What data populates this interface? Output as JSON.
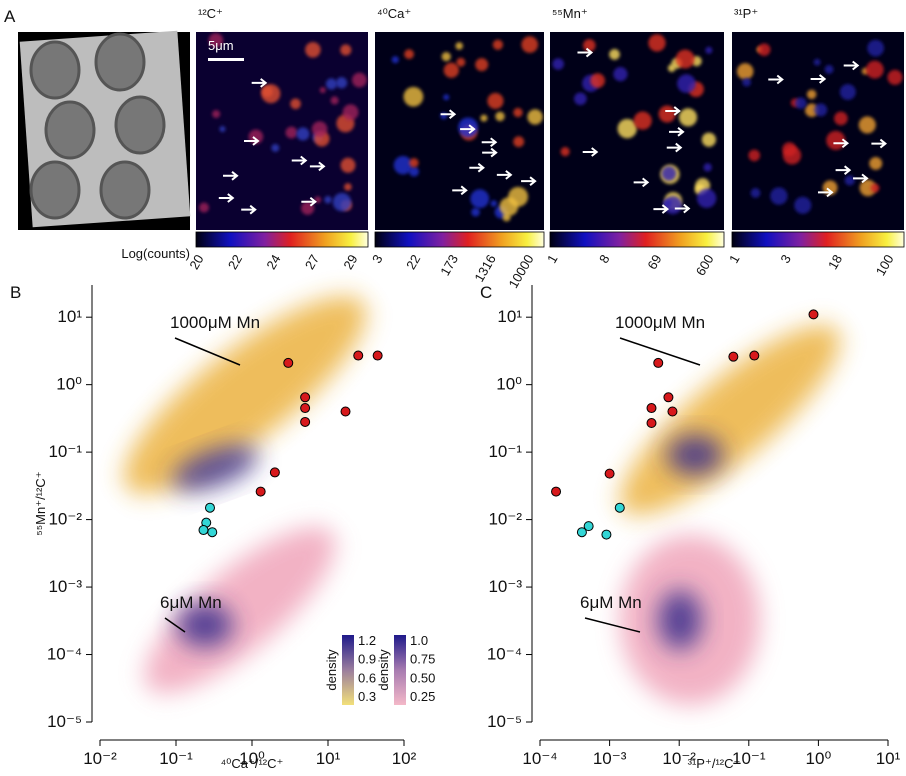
{
  "panel_a": {
    "label": "A",
    "scale_bar": "5μm",
    "colorbar_title": "Log(counts)",
    "channels": [
      {
        "title": "¹²C⁺",
        "ticks": [
          20,
          22,
          24,
          27,
          29
        ]
      },
      {
        "title": "⁴⁰Ca⁺",
        "ticks": [
          3,
          22,
          173,
          1316,
          10000
        ]
      },
      {
        "title": "⁵⁵Mn⁺",
        "ticks": [
          1,
          8,
          69,
          600
        ]
      },
      {
        "title": "³¹P⁺",
        "ticks": [
          1,
          3,
          18,
          100
        ]
      }
    ]
  },
  "chart_data": [
    {
      "type": "scatter",
      "label": "B",
      "xlabel": "⁴⁰Ca⁺/¹²C⁺",
      "ylabel": "⁵⁵Mn⁺/¹²C⁺",
      "log_x": true,
      "log_y": true,
      "xlim": [
        0.01,
        100
      ],
      "ylim": [
        1e-05,
        30
      ],
      "xticks": [
        {
          "value": 0.01,
          "label": "10⁻²"
        },
        {
          "value": 0.1,
          "label": "10⁻¹"
        },
        {
          "value": 1,
          "label": "10⁰"
        },
        {
          "value": 10,
          "label": "10¹"
        },
        {
          "value": 100,
          "label": "10²"
        }
      ],
      "yticks": [
        {
          "value": 1e-05,
          "label": "10⁻⁵"
        },
        {
          "value": 0.0001,
          "label": "10⁻⁴"
        },
        {
          "value": 0.001,
          "label": "10⁻³"
        },
        {
          "value": 0.01,
          "label": "10⁻²"
        },
        {
          "value": 0.1,
          "label": "10⁻¹"
        },
        {
          "value": 1,
          "label": "10⁰"
        },
        {
          "value": 10,
          "label": "10¹"
        }
      ],
      "annotations": [
        "1000μM Mn",
        "6μM Mn"
      ],
      "density_colorbars": [
        {
          "title": "density",
          "ticks": [
            0.3,
            0.6,
            0.9,
            1.2
          ]
        },
        {
          "title": "density",
          "ticks": [
            0.25,
            {
              "value": 0.5,
              "label": "0.50"
            },
            0.75,
            {
              "value": 1,
              "label": "1.0"
            }
          ]
        }
      ],
      "series": [
        {
          "color": "#d7191c",
          "x": [
            3,
            25,
            45,
            5,
            5,
            5,
            17,
            2,
            1.3
          ],
          "values": [
            2.1,
            2.7,
            2.7,
            0.65,
            0.45,
            0.28,
            0.4,
            0.05,
            0.026
          ]
        },
        {
          "color": "#33d6d6",
          "x": [
            0.28,
            0.25,
            0.23,
            0.3
          ],
          "values": [
            0.015,
            0.009,
            0.007,
            0.0065
          ]
        }
      ]
    },
    {
      "type": "scatter",
      "label": "C",
      "xlabel": "³¹P⁺/¹²C⁺",
      "log_x": true,
      "log_y": true,
      "xlim": [
        0.0001,
        10
      ],
      "ylim": [
        1e-05,
        30
      ],
      "xticks": [
        {
          "value": 0.0001,
          "label": "10⁻⁴"
        },
        {
          "value": 0.001,
          "label": "10⁻³"
        },
        {
          "value": 0.01,
          "label": "10⁻²"
        },
        {
          "value": 0.1,
          "label": "10⁻¹"
        },
        {
          "value": 1,
          "label": "10⁰"
        },
        {
          "value": 10,
          "label": "10¹"
        }
      ],
      "yticks": [
        {
          "value": 1e-05,
          "label": "10⁻⁵"
        },
        {
          "value": 0.0001,
          "label": "10⁻⁴"
        },
        {
          "value": 0.001,
          "label": "10⁻³"
        },
        {
          "value": 0.01,
          "label": "10⁻²"
        },
        {
          "value": 0.1,
          "label": "10⁻¹"
        },
        {
          "value": 1,
          "label": "10⁰"
        },
        {
          "value": 10,
          "label": "10¹"
        }
      ],
      "annotations": [
        "1000μM Mn",
        "6μM Mn"
      ],
      "series": [
        {
          "color": "#d7191c",
          "x": [
            0.85,
            0.06,
            0.12,
            0.005,
            0.007,
            0.004,
            0.008,
            0.004,
            0.001,
            0.00017
          ],
          "values": [
            11,
            2.6,
            2.7,
            2.1,
            0.65,
            0.45,
            0.4,
            0.27,
            0.048,
            0.026
          ]
        },
        {
          "color": "#33d6d6",
          "x": [
            0.0014,
            0.0005,
            0.0004,
            0.0009
          ],
          "values": [
            0.015,
            0.008,
            0.0065,
            0.006
          ]
        }
      ]
    }
  ]
}
